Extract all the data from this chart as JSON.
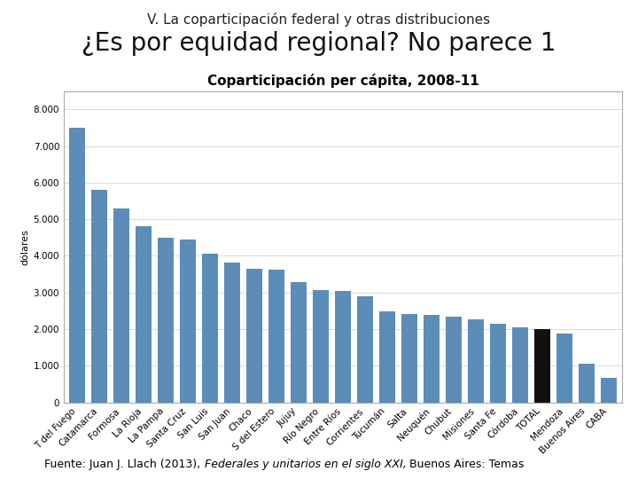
{
  "title_top1": "V. La coparticipación federal y otras distribuciones",
  "title_top2": "¿Es por equidad regional? No parece 1",
  "chart_title": "Coparticipación per cápita, 2008-11",
  "ylabel": "dólares",
  "footnote_plain1": "Fuente: Juan J. Llach (2013), ",
  "footnote_italic": "Federales y unitarios en el siglo XXI,",
  "footnote_plain2": " Buenos Aires: Temas",
  "categories": [
    "T del Fuego",
    "Catamarca",
    "Formosa",
    "La Rioja",
    "La Pampa",
    "Santa Cruz",
    "San Luis",
    "San Juan",
    "Chaco",
    "S del Estero",
    "Jujuy",
    "Río Negro",
    "Entre Ríos",
    "Corrientes",
    "Tucumán",
    "Salta",
    "Neuquén",
    "Chubut",
    "Misiones",
    "Santa Fe",
    "Córdoba",
    "TOTAL",
    "Mendoza",
    "Buenos Aires",
    "CABA"
  ],
  "values": [
    7500,
    5800,
    5300,
    4800,
    4500,
    4450,
    4050,
    3820,
    3650,
    3620,
    3280,
    3060,
    3050,
    2900,
    2490,
    2420,
    2380,
    2350,
    2270,
    2150,
    2060,
    2010,
    1870,
    1050,
    680
  ],
  "bar_colors": [
    "#5B8DB8",
    "#5B8DB8",
    "#5B8DB8",
    "#5B8DB8",
    "#5B8DB8",
    "#5B8DB8",
    "#5B8DB8",
    "#5B8DB8",
    "#5B8DB8",
    "#5B8DB8",
    "#5B8DB8",
    "#5B8DB8",
    "#5B8DB8",
    "#5B8DB8",
    "#5B8DB8",
    "#5B8DB8",
    "#5B8DB8",
    "#5B8DB8",
    "#5B8DB8",
    "#5B8DB8",
    "#5B8DB8",
    "#111111",
    "#5B8DB8",
    "#5B8DB8",
    "#5B8DB8"
  ],
  "ylim": [
    0,
    8500
  ],
  "yticks": [
    0,
    1000,
    2000,
    3000,
    4000,
    5000,
    6000,
    7000,
    8000
  ],
  "ytick_labels": [
    "0",
    "1.000",
    "2.000",
    "3.000",
    "4.000",
    "5.000",
    "6.000",
    "7.000",
    "8.000"
  ],
  "background_color": "#ffffff",
  "plot_background": "#ffffff",
  "title_fontsize1": 11,
  "title_fontsize2": 20,
  "chart_title_fontsize": 11,
  "tick_fontsize": 7.5,
  "ylabel_fontsize": 8,
  "footnote_fontsize": 9
}
